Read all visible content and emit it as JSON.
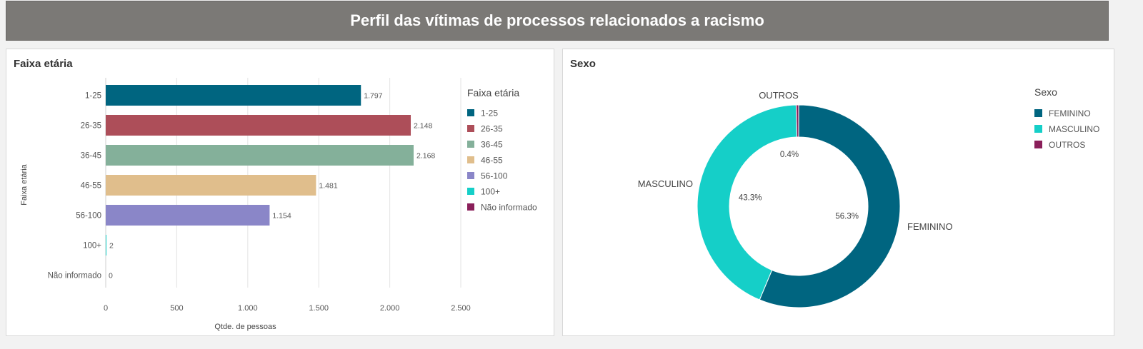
{
  "header": {
    "title": "Perfil das vítimas de processos relacionados a racismo"
  },
  "left_panel": {
    "title": "Faixa etária"
  },
  "right_panel": {
    "title": "Sexo"
  },
  "chart_data": [
    {
      "type": "bar",
      "orientation": "horizontal",
      "title": "Faixa etária",
      "xlabel": "Qtde. de pessoas",
      "ylabel": "Faixa etária",
      "categories": [
        "1-25",
        "26-35",
        "36-45",
        "46-55",
        "56-100",
        "100+",
        "Não informado"
      ],
      "values": [
        1797,
        2148,
        2168,
        1481,
        1154,
        2,
        0
      ],
      "value_labels": [
        "1.797",
        "2.148",
        "2.168",
        "1.481",
        "1.154",
        "2",
        "0"
      ],
      "colors": [
        "#006580",
        "#ad4e59",
        "#84b09a",
        "#e0be8c",
        "#8a86c8",
        "#15cfc8",
        "#8a1f5a"
      ],
      "xlim": [
        0,
        2500
      ],
      "xticks": [
        0,
        500,
        1000,
        1500,
        2000,
        2500
      ],
      "xtick_labels": [
        "0",
        "500",
        "1.000",
        "1.500",
        "2.000",
        "2.500"
      ],
      "grid": true,
      "legend_title": "Faixa etária",
      "legend_position": "right",
      "legend": [
        "1-25",
        "26-35",
        "36-45",
        "46-55",
        "56-100",
        "100+",
        "Não informado"
      ]
    },
    {
      "type": "pie",
      "variant": "donut",
      "title": "Sexo",
      "categories": [
        "FEMININO",
        "MASCULINO",
        "OUTROS"
      ],
      "values": [
        56.3,
        43.3,
        0.4
      ],
      "value_labels": [
        "56.3%",
        "43.3%",
        "0.4%"
      ],
      "colors": [
        "#006580",
        "#15cfc8",
        "#8a1f5a"
      ],
      "legend_title": "Sexo",
      "legend_position": "right",
      "legend": [
        "FEMININO",
        "MASCULINO",
        "OUTROS"
      ]
    }
  ]
}
